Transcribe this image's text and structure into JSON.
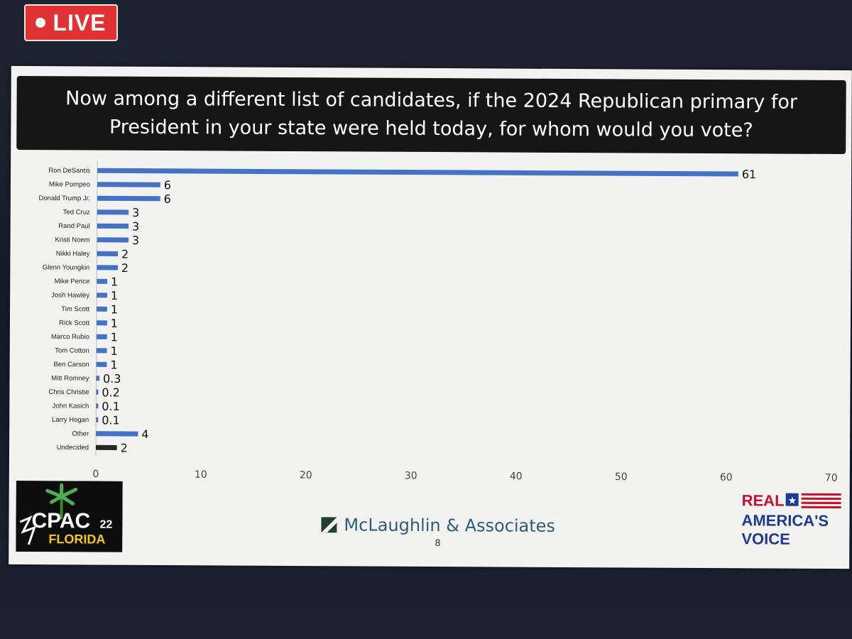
{
  "live_badge": {
    "label": "LIVE"
  },
  "slide": {
    "title": "Now among a different list of candidates, if the 2024 Republican primary for\nPresident in your state were held today, for whom would you vote?",
    "page_number": "8"
  },
  "logos": {
    "cpac_main": "CPAC",
    "cpac_year": "22",
    "cpac_sub": "FLORIDA",
    "pollster": "McLaughlin & Associates",
    "rav_line1": "REAL",
    "rav_line2": "AMERICA'S",
    "rav_line3": "VOICE"
  },
  "colors": {
    "bar_blue": "#4472c4",
    "bar_dark": "#262626",
    "title_bg": "#161616",
    "live_red": "#e03232"
  },
  "chart_data": {
    "type": "bar",
    "orientation": "horizontal",
    "categories": [
      "Ron DeSantis",
      "Mike Pompeo",
      "Donald Trump Jr.",
      "Ted Cruz",
      "Rand Paul",
      "Kristi Noem",
      "Nikki Haley",
      "Glenn Youngkin",
      "Mike Pence",
      "Josh Hawley",
      "Tim Scott",
      "Rick Scott",
      "Marco Rubio",
      "Tom Cotton",
      "Ben Carson",
      "Mitt Romney",
      "Chris Christie",
      "John Kasich",
      "Larry Hogan",
      "Other",
      "Undecided"
    ],
    "values": [
      61,
      6,
      6,
      3,
      3,
      3,
      2,
      2,
      1,
      1,
      1,
      1,
      1,
      1,
      1,
      0.3,
      0.2,
      0.1,
      0.1,
      4,
      2
    ],
    "value_labels": [
      "61",
      "6",
      "6",
      "3",
      "3",
      "3",
      "2",
      "2",
      "1",
      "1",
      "1",
      "1",
      "1",
      "1",
      "1",
      "0.3",
      "0.2",
      "0.1",
      "0.1",
      "4",
      "2"
    ],
    "bar_colors": [
      "blue",
      "blue",
      "blue",
      "blue",
      "blue",
      "blue",
      "blue",
      "blue",
      "blue",
      "blue",
      "blue",
      "blue",
      "blue",
      "blue",
      "blue",
      "blue",
      "blue",
      "blue",
      "blue",
      "blue",
      "dark"
    ],
    "xlim": [
      0,
      70
    ],
    "xticks": [
      0,
      10,
      20,
      30,
      40,
      50,
      60,
      70
    ],
    "grid": false,
    "legend": "none",
    "title": "",
    "xlabel": "",
    "ylabel": ""
  }
}
